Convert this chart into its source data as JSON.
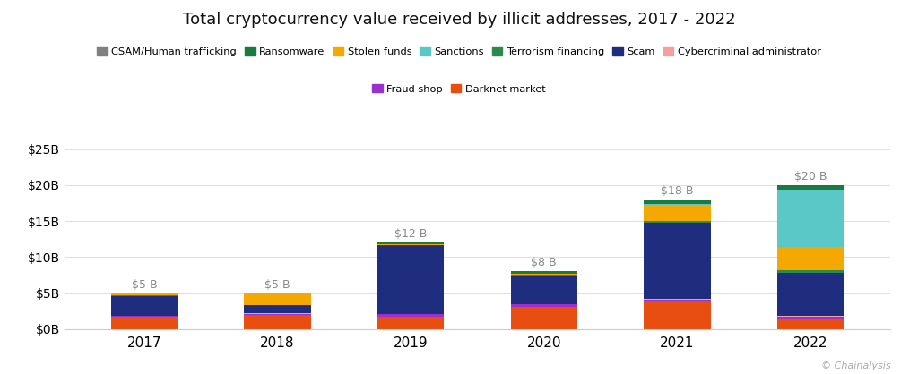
{
  "title": "Total cryptocurrency value received by illicit addresses, 2017 - 2022",
  "years": [
    "2017",
    "2018",
    "2019",
    "2020",
    "2021",
    "2022"
  ],
  "totals": [
    "$5 B",
    "$5 B",
    "$12 B",
    "$8 B",
    "$18 B",
    "$20 B"
  ],
  "categories_legend": [
    "CSAM/Human trafficking",
    "Ransomware",
    "Stolen funds",
    "Sanctions",
    "Terrorism financing",
    "Scam",
    "Cybercriminal administrator",
    "Fraud shop",
    "Darknet market"
  ],
  "colors_legend": [
    "#808080",
    "#1a7a40",
    "#f5a800",
    "#5bc8c8",
    "#2d8a4e",
    "#1e2d7d",
    "#f4a0a0",
    "#9b30d0",
    "#e84e0f"
  ],
  "stack_order": [
    "Darknet market",
    "Fraud shop",
    "Cybercriminal administrator",
    "Scam",
    "Terrorism financing",
    "Stolen funds",
    "Sanctions",
    "Ransomware",
    "CSAM/Human trafficking"
  ],
  "stack_colors": [
    "#e84e0f",
    "#9b30d0",
    "#f4a0a0",
    "#1e2d7d",
    "#2d8a4e",
    "#f5a800",
    "#5bc8c8",
    "#1a7a40",
    "#808080"
  ],
  "data": {
    "CSAM/Human trafficking": [
      0.03,
      0.03,
      0.03,
      0.03,
      0.05,
      0.05
    ],
    "Ransomware": [
      0.03,
      0.03,
      0.15,
      0.35,
      0.6,
      0.6
    ],
    "Stolen funds": [
      0.3,
      1.5,
      0.15,
      0.15,
      2.3,
      3.2
    ],
    "Sanctions": [
      0.0,
      0.0,
      0.0,
      0.0,
      0.05,
      8.0
    ],
    "Terrorism financing": [
      0.02,
      0.02,
      0.05,
      0.05,
      0.3,
      0.3
    ],
    "Scam": [
      2.8,
      1.2,
      9.5,
      4.0,
      10.5,
      6.0
    ],
    "Cybercriminal administrator": [
      0.02,
      0.05,
      0.05,
      0.05,
      0.08,
      0.1
    ],
    "Fraud shop": [
      0.1,
      0.12,
      0.3,
      0.3,
      0.2,
      0.3
    ],
    "Darknet market": [
      1.7,
      2.0,
      1.77,
      3.12,
      3.92,
      1.45
    ]
  },
  "ylabel_ticks": [
    0,
    5,
    10,
    15,
    20,
    25
  ],
  "ylabel_labels": [
    "$0B",
    "$5B",
    "$10B",
    "$15B",
    "$20B",
    "$25B"
  ],
  "ylim": [
    0,
    27
  ],
  "background_color": "#ffffff",
  "grid_color": "#e0e0e0",
  "annotation_color": "#888888",
  "watermark": "© Chainalysis"
}
